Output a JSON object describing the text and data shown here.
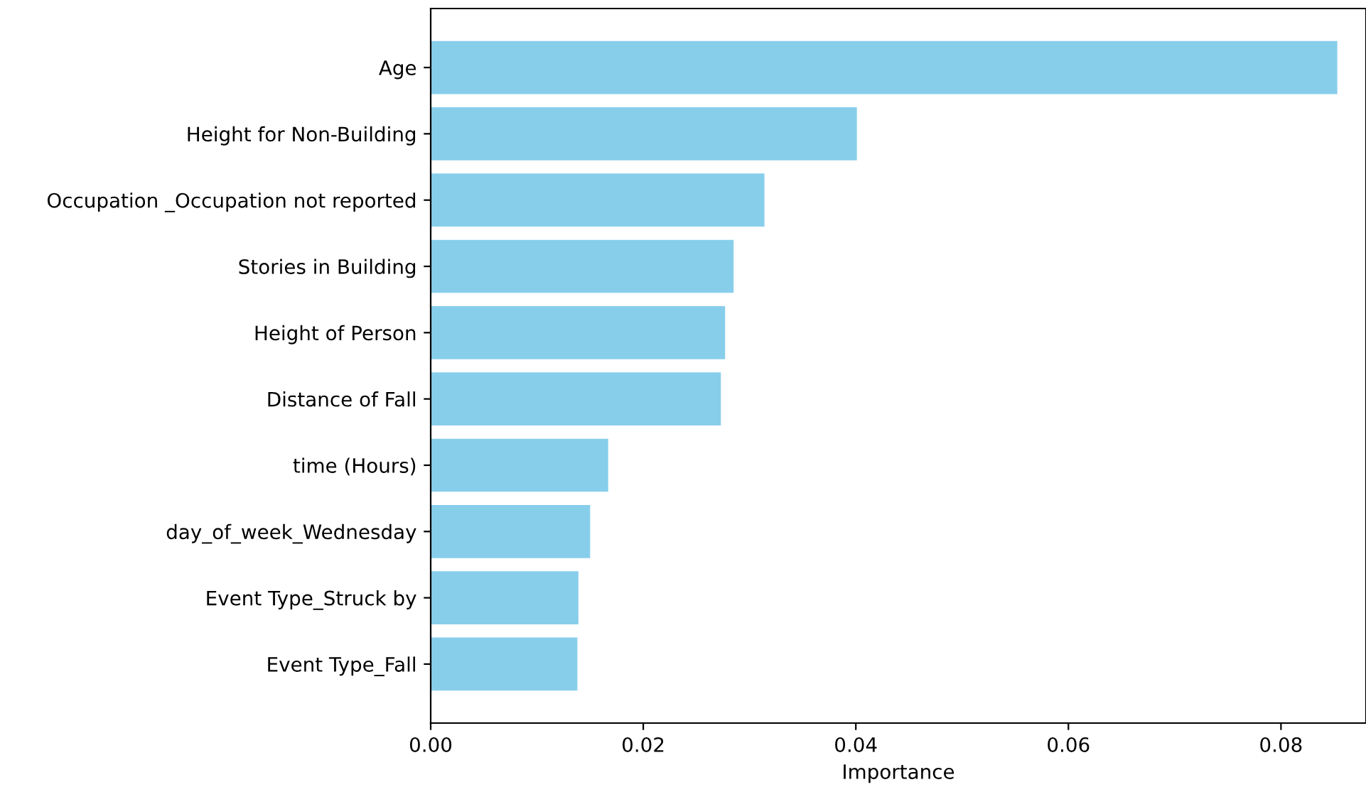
{
  "chart_data": {
    "type": "bar",
    "orientation": "horizontal",
    "xlabel": "Importance",
    "categories": [
      "Age",
      "Height for Non-Building",
      "Occupation _Occupation not reported",
      "Stories in Building",
      "Height of Person",
      "Distance of Fall",
      "time (Hours)",
      "day_of_week_Wednesday",
      "Event Type_Struck by",
      "Event Type_Fall"
    ],
    "values": [
      0.0853,
      0.0401,
      0.0314,
      0.0285,
      0.0277,
      0.0273,
      0.0167,
      0.015,
      0.0139,
      0.0138
    ],
    "color": "#87ceeb",
    "xlim": [
      0,
      0.088
    ],
    "xticks": [
      {
        "value": 0,
        "label": "0.00"
      },
      {
        "value": 0.02,
        "label": "0.02"
      },
      {
        "value": 0.04,
        "label": "0.04"
      },
      {
        "value": 0.06,
        "label": "0.06"
      },
      {
        "value": 0.08,
        "label": "0.08"
      }
    ],
    "grid": false
  }
}
